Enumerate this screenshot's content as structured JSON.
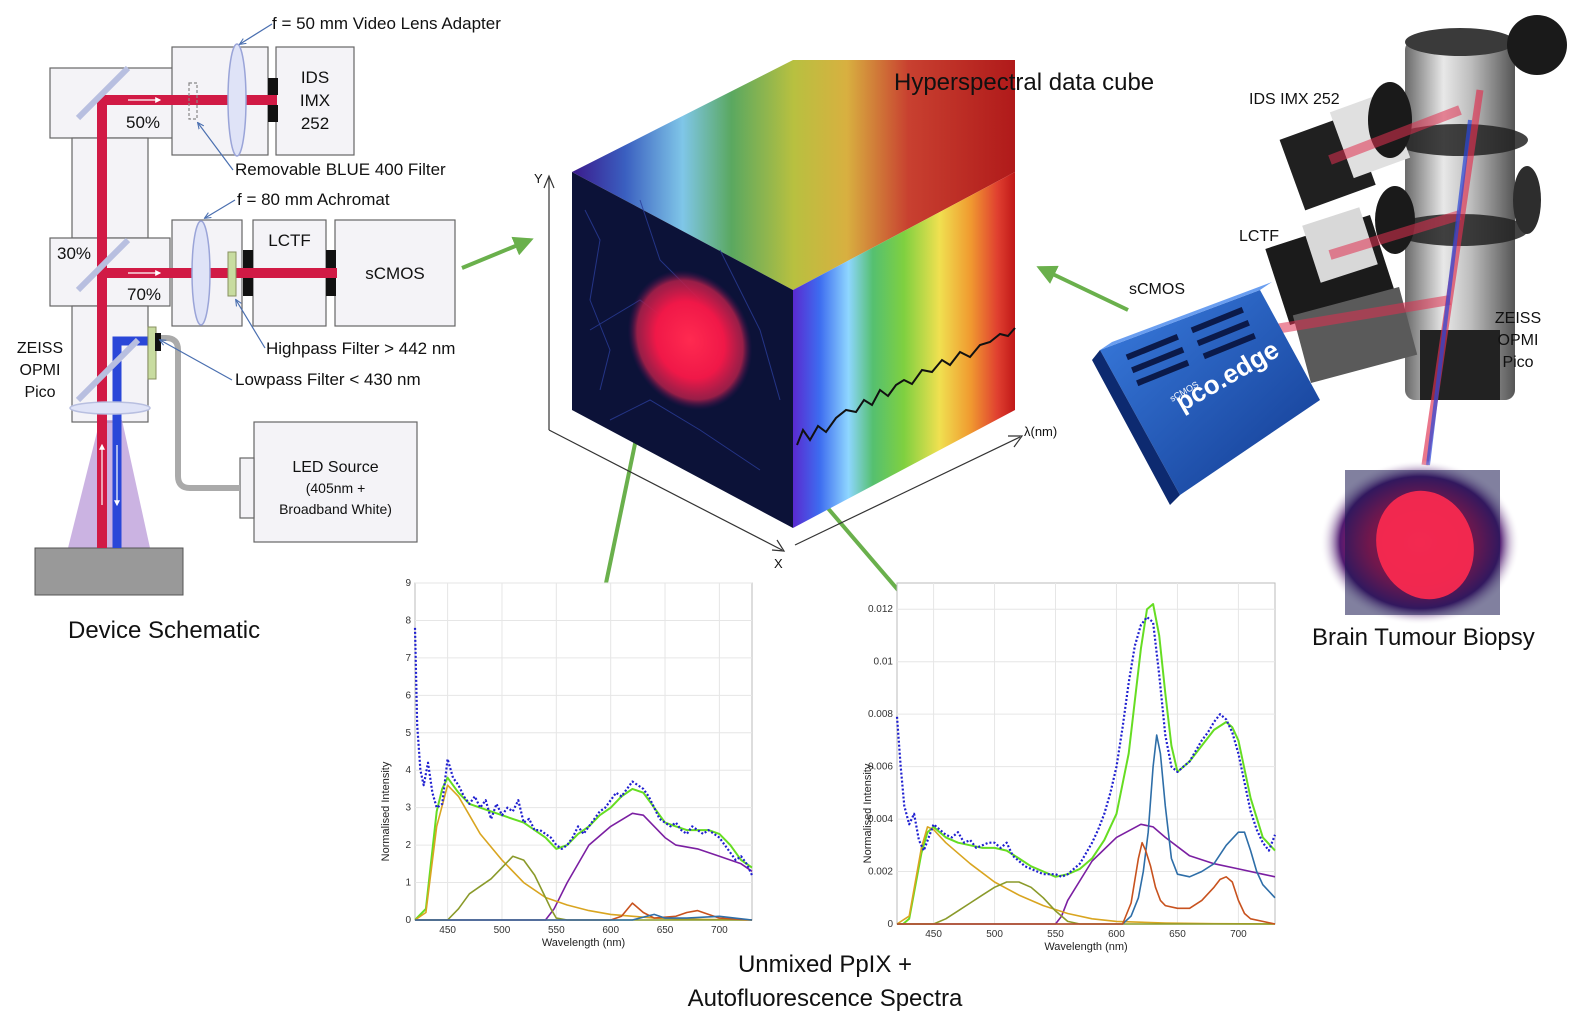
{
  "schematic": {
    "caption": "Device Schematic",
    "lens_adapter": "f = 50 mm Video Lens Adapter",
    "blue_filter": "Removable BLUE 400 Filter",
    "achromat": "f = 80 mm Achromat",
    "highpass": "Highpass Filter > 442 nm",
    "lowpass": "Lowpass Filter < 430 nm",
    "split_50": "50%",
    "split_30": "30%",
    "split_70": "70%",
    "ids_box": [
      "IDS",
      "IMX",
      "252"
    ],
    "lctf_box": "LCTF",
    "scmos_box": "sCMOS",
    "microscope": [
      "ZEISS",
      "OPMI",
      "Pico"
    ],
    "led_box": [
      "LED Source",
      "(405nm +",
      "Broadband White)"
    ]
  },
  "cube": {
    "title": "Hyperspectral data cube",
    "axis_y": "Y",
    "axis_x": "X",
    "axis_lambda": "λ(nm)"
  },
  "photo": {
    "ids": "IDS IMX 252",
    "lctf": "LCTF",
    "scmos": "sCMOS",
    "zeiss": [
      "ZEISS",
      "OPMI",
      "Pico"
    ],
    "camera_brand": "pco.edge",
    "camera_sub": "sCMOS",
    "biopsy_caption": "Brain Tumour Biopsy"
  },
  "spectra_caption": [
    "Unmixed PpIX +",
    "Autofluorescence Spectra"
  ],
  "colors": {
    "measured": "#1f1fd0",
    "fit": "#66dd22",
    "ppix": "#7b1fa2",
    "auto_yellow": "#d9a520",
    "auto_olive": "#8a9a2a",
    "auto_blue": "#2e6ea8",
    "auto_orange": "#c8521e",
    "arrow": "#6ab04c"
  },
  "chart_data": [
    {
      "type": "line",
      "xlabel": "Wavelength (nm)",
      "ylabel": "Normalised Intensity",
      "xlim": [
        420,
        730
      ],
      "ylim": [
        0,
        9
      ],
      "xticks": [
        450,
        500,
        550,
        600,
        650,
        700
      ],
      "yticks": [
        0,
        1,
        2,
        3,
        4,
        5,
        6,
        7,
        8,
        9
      ],
      "grid": true,
      "series": [
        {
          "key": "measured",
          "style": "dotted",
          "x": [
            420,
            422,
            425,
            428,
            432,
            436,
            440,
            445,
            450,
            455,
            460,
            465,
            470,
            475,
            480,
            485,
            490,
            495,
            500,
            505,
            510,
            515,
            520,
            525,
            530,
            535,
            540,
            545,
            550,
            555,
            560,
            565,
            570,
            575,
            580,
            585,
            590,
            595,
            600,
            605,
            610,
            615,
            620,
            625,
            630,
            635,
            640,
            645,
            650,
            655,
            660,
            665,
            670,
            675,
            680,
            685,
            690,
            695,
            700,
            705,
            710,
            715,
            720,
            725,
            730
          ],
          "y": [
            7.8,
            5.2,
            4.0,
            3.6,
            4.2,
            3.4,
            3.0,
            3.1,
            4.3,
            3.8,
            3.6,
            3.3,
            3.1,
            3.3,
            3.0,
            3.2,
            2.7,
            3.1,
            2.8,
            3.0,
            2.9,
            3.2,
            2.6,
            2.7,
            2.4,
            2.4,
            2.3,
            2.2,
            2.0,
            1.9,
            2.0,
            2.2,
            2.5,
            2.3,
            2.5,
            2.7,
            2.9,
            3.0,
            3.2,
            3.4,
            3.3,
            3.5,
            3.7,
            3.6,
            3.5,
            3.3,
            3.0,
            2.7,
            2.6,
            2.5,
            2.6,
            2.4,
            2.3,
            2.5,
            2.4,
            2.3,
            2.4,
            2.3,
            2.2,
            2.0,
            1.8,
            1.6,
            1.7,
            1.5,
            1.2
          ]
        },
        {
          "key": "fit",
          "x": [
            420,
            430,
            440,
            445,
            450,
            455,
            460,
            470,
            480,
            490,
            500,
            510,
            520,
            530,
            540,
            550,
            560,
            570,
            580,
            590,
            600,
            610,
            620,
            630,
            640,
            650,
            660,
            670,
            680,
            690,
            700,
            710,
            720,
            730
          ],
          "y": [
            0,
            0.3,
            2.9,
            3.5,
            3.8,
            3.6,
            3.4,
            3.1,
            3.0,
            2.9,
            2.8,
            2.7,
            2.6,
            2.4,
            2.2,
            1.9,
            2.0,
            2.3,
            2.5,
            2.8,
            3.0,
            3.3,
            3.5,
            3.4,
            3.0,
            2.6,
            2.5,
            2.4,
            2.4,
            2.4,
            2.3,
            2.0,
            1.6,
            1.4
          ]
        },
        {
          "key": "ppix",
          "x": [
            420,
            540,
            548,
            560,
            580,
            600,
            620,
            630,
            640,
            650,
            660,
            680,
            700,
            720,
            730
          ],
          "y": [
            0,
            0,
            0.3,
            1.0,
            2.0,
            2.5,
            2.85,
            2.8,
            2.5,
            2.2,
            2.0,
            1.9,
            1.7,
            1.5,
            1.3
          ]
        },
        {
          "key": "auto_yellow",
          "x": [
            420,
            430,
            440,
            450,
            460,
            470,
            480,
            500,
            520,
            540,
            560,
            580,
            600,
            640,
            680,
            730
          ],
          "y": [
            0,
            0.2,
            2.5,
            3.6,
            3.3,
            2.8,
            2.3,
            1.6,
            1.0,
            0.6,
            0.4,
            0.25,
            0.15,
            0.05,
            0.02,
            0
          ]
        },
        {
          "key": "auto_olive",
          "x": [
            420,
            450,
            460,
            470,
            480,
            490,
            500,
            510,
            520,
            530,
            540,
            545,
            550,
            560,
            730
          ],
          "y": [
            0,
            0,
            0.3,
            0.7,
            0.9,
            1.1,
            1.4,
            1.7,
            1.6,
            1.2,
            0.6,
            0.3,
            0.05,
            0,
            0
          ]
        },
        {
          "key": "auto_orange",
          "x": [
            420,
            600,
            610,
            620,
            630,
            640,
            660,
            670,
            680,
            690,
            700,
            730
          ],
          "y": [
            0,
            0,
            0.1,
            0.45,
            0.2,
            0.05,
            0.1,
            0.2,
            0.25,
            0.15,
            0.05,
            0
          ]
        },
        {
          "key": "auto_blue",
          "x": [
            420,
            620,
            640,
            650,
            670,
            700,
            730
          ],
          "y": [
            0,
            0,
            0.15,
            0.05,
            0.05,
            0.1,
            0
          ]
        }
      ]
    },
    {
      "type": "line",
      "xlabel": "Wavelength (nm)",
      "ylabel": "Normalised Intensity",
      "xlim": [
        420,
        730
      ],
      "ylim": [
        0,
        0.013
      ],
      "xticks": [
        450,
        500,
        550,
        600,
        650,
        700
      ],
      "yticks": [
        0,
        0.002,
        0.004,
        0.006,
        0.008,
        0.01,
        0.012
      ],
      "grid": true,
      "series": [
        {
          "key": "measured",
          "style": "dotted",
          "x": [
            420,
            423,
            426,
            430,
            434,
            438,
            442,
            446,
            450,
            455,
            460,
            465,
            470,
            475,
            480,
            485,
            490,
            495,
            500,
            505,
            510,
            515,
            520,
            525,
            530,
            535,
            540,
            545,
            550,
            555,
            560,
            565,
            570,
            575,
            580,
            585,
            590,
            595,
            600,
            605,
            610,
            615,
            620,
            625,
            630,
            635,
            640,
            645,
            650,
            655,
            660,
            665,
            670,
            675,
            680,
            685,
            690,
            695,
            700,
            705,
            710,
            715,
            720,
            725,
            730
          ],
          "y": [
            0.0079,
            0.006,
            0.0045,
            0.0038,
            0.0042,
            0.0032,
            0.0028,
            0.0033,
            0.0038,
            0.0036,
            0.0034,
            0.0033,
            0.0035,
            0.0031,
            0.0032,
            0.0029,
            0.003,
            0.0031,
            0.0031,
            0.0029,
            0.0031,
            0.0026,
            0.0024,
            0.0022,
            0.0021,
            0.002,
            0.0019,
            0.0019,
            0.0019,
            0.0018,
            0.0019,
            0.0021,
            0.0023,
            0.0027,
            0.0031,
            0.0036,
            0.0042,
            0.005,
            0.006,
            0.0075,
            0.0092,
            0.0106,
            0.0114,
            0.0117,
            0.0115,
            0.0095,
            0.0072,
            0.006,
            0.0058,
            0.006,
            0.0062,
            0.0066,
            0.007,
            0.0073,
            0.0077,
            0.008,
            0.0078,
            0.0073,
            0.0065,
            0.0054,
            0.0043,
            0.0036,
            0.0031,
            0.0028,
            0.0034
          ]
        },
        {
          "key": "fit",
          "x": [
            420,
            425,
            430,
            440,
            445,
            450,
            455,
            460,
            470,
            480,
            490,
            500,
            510,
            520,
            530,
            540,
            550,
            560,
            570,
            580,
            590,
            600,
            610,
            615,
            620,
            625,
            630,
            635,
            640,
            645,
            650,
            660,
            670,
            680,
            690,
            695,
            700,
            710,
            720,
            730
          ],
          "y": [
            0,
            0,
            0.0002,
            0.0027,
            0.0035,
            0.0037,
            0.0035,
            0.0033,
            0.0031,
            0.003,
            0.0029,
            0.0029,
            0.0028,
            0.0025,
            0.0022,
            0.002,
            0.0018,
            0.0019,
            0.0021,
            0.0025,
            0.0032,
            0.0042,
            0.0065,
            0.0085,
            0.0105,
            0.012,
            0.0122,
            0.011,
            0.0088,
            0.0068,
            0.0058,
            0.0062,
            0.0068,
            0.0074,
            0.0077,
            0.0075,
            0.007,
            0.0048,
            0.0033,
            0.0028
          ]
        },
        {
          "key": "ppix",
          "x": [
            420,
            550,
            555,
            560,
            580,
            600,
            620,
            630,
            640,
            660,
            680,
            700,
            720,
            730
          ],
          "y": [
            0,
            0,
            0.0003,
            0.0009,
            0.0024,
            0.0033,
            0.0038,
            0.0037,
            0.0033,
            0.0026,
            0.0023,
            0.0021,
            0.0019,
            0.0018
          ]
        },
        {
          "key": "auto_yellow",
          "x": [
            420,
            430,
            440,
            445,
            450,
            460,
            470,
            480,
            500,
            520,
            540,
            560,
            580,
            600,
            640,
            680,
            730
          ],
          "y": [
            0,
            0.0003,
            0.0029,
            0.0037,
            0.0036,
            0.0031,
            0.0027,
            0.0023,
            0.0016,
            0.0011,
            0.0007,
            0.0004,
            0.0002,
            0.0001,
            4e-05,
            1e-05,
            0
          ]
        },
        {
          "key": "auto_olive",
          "x": [
            420,
            450,
            460,
            470,
            480,
            490,
            500,
            510,
            520,
            530,
            540,
            550,
            560,
            570,
            730
          ],
          "y": [
            0,
            0,
            0.0002,
            0.0005,
            0.0008,
            0.0011,
            0.0014,
            0.0016,
            0.0016,
            0.0014,
            0.001,
            0.0005,
            0.0001,
            0,
            0
          ]
        },
        {
          "key": "auto_blue",
          "x": [
            420,
            605,
            612,
            618,
            622,
            626,
            630,
            633,
            636,
            640,
            645,
            650,
            660,
            670,
            680,
            690,
            700,
            705,
            710,
            715,
            720,
            730
          ],
          "y": [
            0,
            0,
            0.0003,
            0.001,
            0.002,
            0.0035,
            0.006,
            0.0072,
            0.0065,
            0.0045,
            0.0025,
            0.0019,
            0.0018,
            0.002,
            0.0023,
            0.003,
            0.0035,
            0.0035,
            0.0028,
            0.002,
            0.0015,
            0.001
          ]
        },
        {
          "key": "auto_orange",
          "x": [
            420,
            605,
            612,
            618,
            621,
            624,
            628,
            632,
            636,
            640,
            650,
            660,
            670,
            680,
            685,
            690,
            695,
            700,
            705,
            710,
            720,
            730
          ],
          "y": [
            0,
            0,
            0.0008,
            0.0025,
            0.0031,
            0.0028,
            0.0022,
            0.0014,
            0.0009,
            0.0007,
            0.0006,
            0.0006,
            0.0009,
            0.0014,
            0.0017,
            0.0018,
            0.0016,
            0.0009,
            0.0004,
            0.0002,
            0.0001,
            0
          ]
        }
      ]
    }
  ]
}
